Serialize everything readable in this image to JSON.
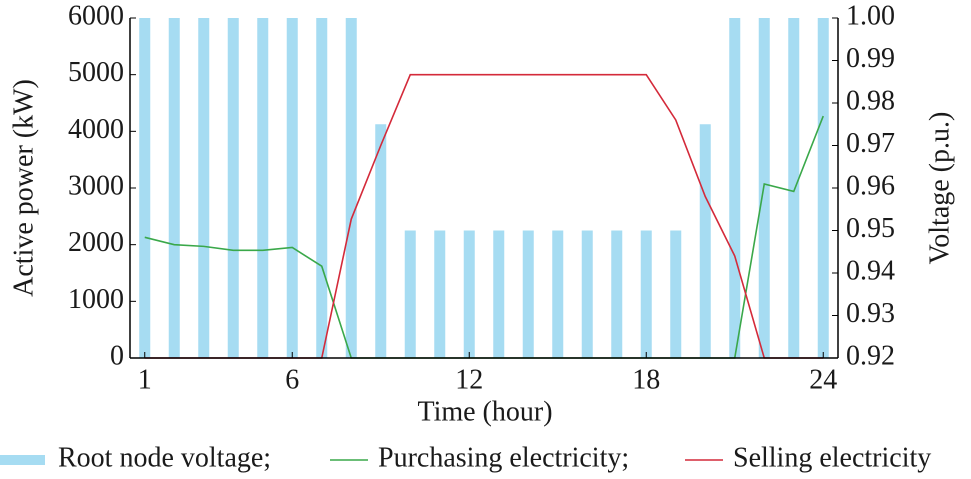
{
  "chart_data": {
    "type": "bar-line",
    "xlabel": "Time (hour)",
    "ylabel": "Active power (kW)",
    "y2label": "Voltage (p.u.)",
    "x": [
      1,
      2,
      3,
      4,
      5,
      6,
      7,
      8,
      9,
      10,
      11,
      12,
      13,
      14,
      15,
      16,
      17,
      18,
      19,
      20,
      21,
      22,
      23,
      24
    ],
    "xlim": [
      0.5,
      24.5
    ],
    "xticks": [
      1,
      6,
      12,
      18,
      24
    ],
    "ylim": [
      0,
      6000
    ],
    "yticks": [
      0,
      1000,
      2000,
      3000,
      4000,
      5000,
      6000
    ],
    "y2lim": [
      0.92,
      1
    ],
    "y2ticks": [
      0.92,
      0.93,
      0.94,
      0.95,
      0.96,
      0.97,
      0.98,
      0.99,
      {
        "value": 1,
        "label": "1.00"
      }
    ],
    "series": [
      {
        "name": "Root node voltage;",
        "kind": "bar",
        "axis": "y2",
        "color": "#a6dcf2",
        "values": [
          1,
          1,
          1,
          1,
          1,
          1,
          1,
          1,
          0.975,
          0.95,
          0.95,
          0.95,
          0.95,
          0.95,
          0.95,
          0.95,
          0.95,
          0.95,
          0.95,
          0.975,
          1,
          1,
          1,
          1
        ]
      },
      {
        "name": "Purchasing electricity;",
        "kind": "line",
        "color": "#3aa84a",
        "values": [
          2130,
          2000,
          1970,
          1900,
          1900,
          1950,
          1620,
          0,
          0,
          0,
          0,
          0,
          0,
          0,
          0,
          0,
          0,
          0,
          0,
          0,
          0,
          3070,
          2940,
          4270
        ]
      },
      {
        "name": "Selling electricity",
        "kind": "line",
        "color": "#d42a3a",
        "values": [
          0,
          0,
          0,
          0,
          0,
          0,
          0,
          2450,
          3750,
          5000,
          5000,
          5000,
          5000,
          5000,
          5000,
          5000,
          5000,
          5000,
          4200,
          2850,
          1800,
          0,
          0,
          0
        ]
      }
    ]
  }
}
